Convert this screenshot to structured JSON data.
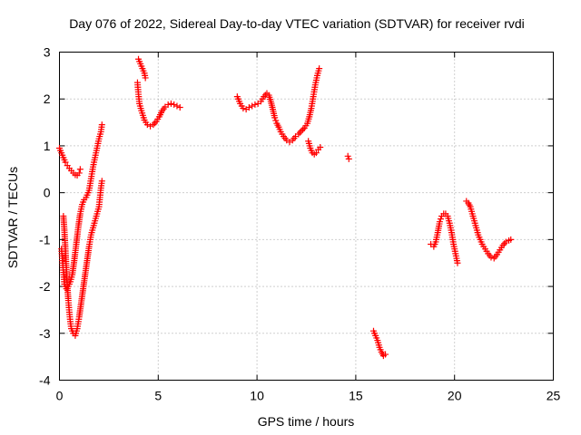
{
  "chart_data": {
    "type": "scatter",
    "title": "Day 076 of 2022, Sidereal Day-to-day VTEC variation (SDTVAR) for receiver rvdi",
    "xlabel": "GPS time / hours",
    "ylabel": "SDTVAR / TECUs",
    "xlim": [
      0,
      25
    ],
    "ylim": [
      -4,
      3
    ],
    "xticks": [
      "0",
      "5",
      "10",
      "15",
      "20",
      "25"
    ],
    "yticks": [
      "-4",
      "-3",
      "-2",
      "-1",
      "0",
      "1",
      "2",
      "3"
    ],
    "grid": true,
    "marker": "plus",
    "color": "#ff0000",
    "segments": [
      [
        [
          0.0,
          0.95
        ],
        [
          0.1,
          0.85
        ],
        [
          0.2,
          0.75
        ],
        [
          0.3,
          0.65
        ],
        [
          0.4,
          0.58
        ],
        [
          0.5,
          0.52
        ],
        [
          0.6,
          0.47
        ],
        [
          0.7,
          0.42
        ],
        [
          0.8,
          0.38
        ],
        [
          0.9,
          0.37
        ],
        [
          1.0,
          0.42
        ],
        [
          1.05,
          0.5
        ]
      ],
      [
        [
          0.1,
          -1.2
        ],
        [
          0.15,
          -1.45
        ],
        [
          0.2,
          -1.7
        ],
        [
          0.25,
          -1.95
        ],
        [
          0.35,
          -2.05
        ],
        [
          0.45,
          -2.0
        ],
        [
          0.55,
          -1.9
        ],
        [
          0.65,
          -1.75
        ],
        [
          0.75,
          -1.45
        ],
        [
          0.85,
          -1.1
        ],
        [
          0.95,
          -0.75
        ],
        [
          1.05,
          -0.45
        ],
        [
          1.15,
          -0.25
        ],
        [
          1.25,
          -0.15
        ],
        [
          1.35,
          -0.1
        ],
        [
          1.5,
          0.05
        ],
        [
          1.6,
          0.3
        ],
        [
          1.7,
          0.55
        ],
        [
          1.8,
          0.75
        ],
        [
          1.9,
          0.95
        ],
        [
          2.0,
          1.15
        ],
        [
          2.1,
          1.3
        ],
        [
          2.15,
          1.45
        ]
      ],
      [
        [
          0.2,
          -0.5
        ],
        [
          0.25,
          -0.8
        ],
        [
          0.3,
          -1.2
        ],
        [
          0.35,
          -1.6
        ],
        [
          0.4,
          -2.0
        ],
        [
          0.45,
          -2.3
        ],
        [
          0.5,
          -2.55
        ],
        [
          0.55,
          -2.75
        ],
        [
          0.6,
          -2.9
        ],
        [
          0.7,
          -3.0
        ],
        [
          0.8,
          -3.05
        ],
        [
          0.9,
          -2.9
        ],
        [
          1.0,
          -2.65
        ],
        [
          1.1,
          -2.35
        ],
        [
          1.2,
          -2.05
        ],
        [
          1.3,
          -1.75
        ],
        [
          1.4,
          -1.45
        ],
        [
          1.5,
          -1.15
        ],
        [
          1.6,
          -0.9
        ],
        [
          1.7,
          -0.75
        ],
        [
          1.8,
          -0.6
        ],
        [
          1.9,
          -0.45
        ],
        [
          2.0,
          -0.3
        ],
        [
          2.05,
          -0.1
        ],
        [
          2.1,
          0.1
        ],
        [
          2.15,
          0.25
        ]
      ],
      [
        [
          4.0,
          2.85
        ],
        [
          4.1,
          2.75
        ],
        [
          4.2,
          2.65
        ],
        [
          4.3,
          2.55
        ],
        [
          4.35,
          2.45
        ]
      ],
      [
        [
          3.95,
          2.35
        ],
        [
          4.0,
          2.1
        ],
        [
          4.05,
          1.9
        ],
        [
          4.15,
          1.75
        ],
        [
          4.3,
          1.55
        ],
        [
          4.45,
          1.45
        ],
        [
          4.6,
          1.42
        ],
        [
          4.75,
          1.45
        ],
        [
          4.9,
          1.52
        ],
        [
          5.05,
          1.62
        ],
        [
          5.2,
          1.75
        ],
        [
          5.35,
          1.83
        ],
        [
          5.5,
          1.88
        ],
        [
          5.65,
          1.9
        ],
        [
          5.8,
          1.88
        ],
        [
          5.95,
          1.85
        ],
        [
          6.1,
          1.82
        ]
      ],
      [
        [
          9.0,
          2.05
        ],
        [
          9.15,
          1.9
        ],
        [
          9.3,
          1.8
        ],
        [
          9.45,
          1.78
        ],
        [
          9.6,
          1.82
        ],
        [
          9.75,
          1.85
        ],
        [
          9.9,
          1.88
        ],
        [
          10.05,
          1.9
        ],
        [
          10.2,
          1.95
        ],
        [
          10.35,
          2.05
        ],
        [
          10.5,
          2.12
        ],
        [
          10.6,
          2.08
        ],
        [
          10.7,
          1.95
        ],
        [
          10.8,
          1.78
        ],
        [
          10.9,
          1.6
        ],
        [
          11.0,
          1.48
        ],
        [
          11.1,
          1.4
        ],
        [
          11.2,
          1.3
        ],
        [
          11.35,
          1.2
        ],
        [
          11.5,
          1.12
        ],
        [
          11.65,
          1.08
        ],
        [
          11.8,
          1.12
        ],
        [
          11.95,
          1.2
        ],
        [
          12.1,
          1.25
        ],
        [
          12.25,
          1.32
        ],
        [
          12.4,
          1.38
        ],
        [
          12.55,
          1.48
        ],
        [
          12.65,
          1.62
        ],
        [
          12.75,
          1.8
        ],
        [
          12.85,
          2.05
        ],
        [
          12.95,
          2.3
        ],
        [
          13.05,
          2.5
        ],
        [
          13.15,
          2.65
        ]
      ],
      [
        [
          12.6,
          1.1
        ],
        [
          12.7,
          0.95
        ],
        [
          12.8,
          0.85
        ],
        [
          12.9,
          0.82
        ],
        [
          13.0,
          0.85
        ],
        [
          13.1,
          0.92
        ],
        [
          13.2,
          0.97
        ]
      ],
      [
        [
          14.6,
          0.78
        ],
        [
          14.65,
          0.72
        ]
      ],
      [
        [
          15.9,
          -2.95
        ],
        [
          16.0,
          -3.05
        ],
        [
          16.1,
          -3.15
        ],
        [
          16.2,
          -3.3
        ],
        [
          16.3,
          -3.4
        ],
        [
          16.4,
          -3.48
        ],
        [
          16.5,
          -3.45
        ]
      ],
      [
        [
          18.8,
          -1.1
        ],
        [
          18.95,
          -1.15
        ],
        [
          19.05,
          -1.05
        ],
        [
          19.15,
          -0.85
        ],
        [
          19.25,
          -0.62
        ],
        [
          19.35,
          -0.5
        ],
        [
          19.45,
          -0.45
        ],
        [
          19.55,
          -0.45
        ],
        [
          19.65,
          -0.5
        ],
        [
          19.75,
          -0.65
        ],
        [
          19.85,
          -0.85
        ],
        [
          19.95,
          -1.1
        ],
        [
          20.05,
          -1.3
        ],
        [
          20.15,
          -1.5
        ]
      ],
      [
        [
          20.6,
          -0.18
        ],
        [
          20.7,
          -0.22
        ],
        [
          20.8,
          -0.3
        ],
        [
          20.9,
          -0.45
        ],
        [
          21.0,
          -0.6
        ],
        [
          21.1,
          -0.75
        ],
        [
          21.2,
          -0.9
        ],
        [
          21.3,
          -1.0
        ],
        [
          21.4,
          -1.1
        ],
        [
          21.55,
          -1.2
        ],
        [
          21.7,
          -1.3
        ],
        [
          21.85,
          -1.38
        ],
        [
          22.0,
          -1.4
        ],
        [
          22.15,
          -1.32
        ],
        [
          22.3,
          -1.22
        ],
        [
          22.45,
          -1.12
        ],
        [
          22.6,
          -1.05
        ],
        [
          22.75,
          -1.02
        ],
        [
          22.85,
          -1.0
        ]
      ]
    ]
  }
}
